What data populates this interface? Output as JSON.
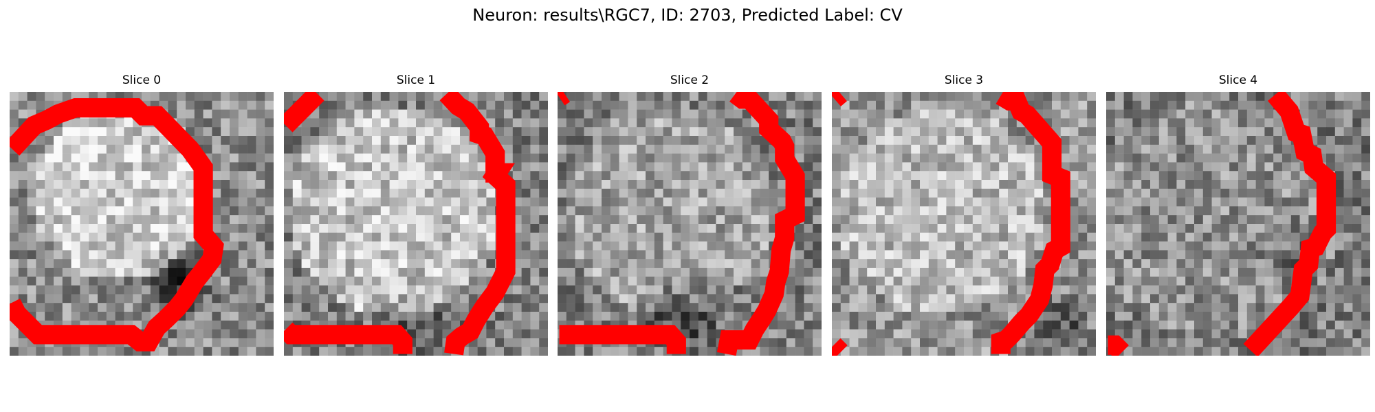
{
  "figure": {
    "title": "Neuron: results\\RGC7, ID: 2703, Predicted Label: CV"
  },
  "slices": [
    {
      "title": "Slice 0"
    },
    {
      "title": "Slice 1"
    },
    {
      "title": "Slice 2"
    },
    {
      "title": "Slice 3"
    },
    {
      "title": "Slice 4"
    }
  ],
  "colors": {
    "contour": "#ff0000",
    "background": "#ffffff"
  }
}
